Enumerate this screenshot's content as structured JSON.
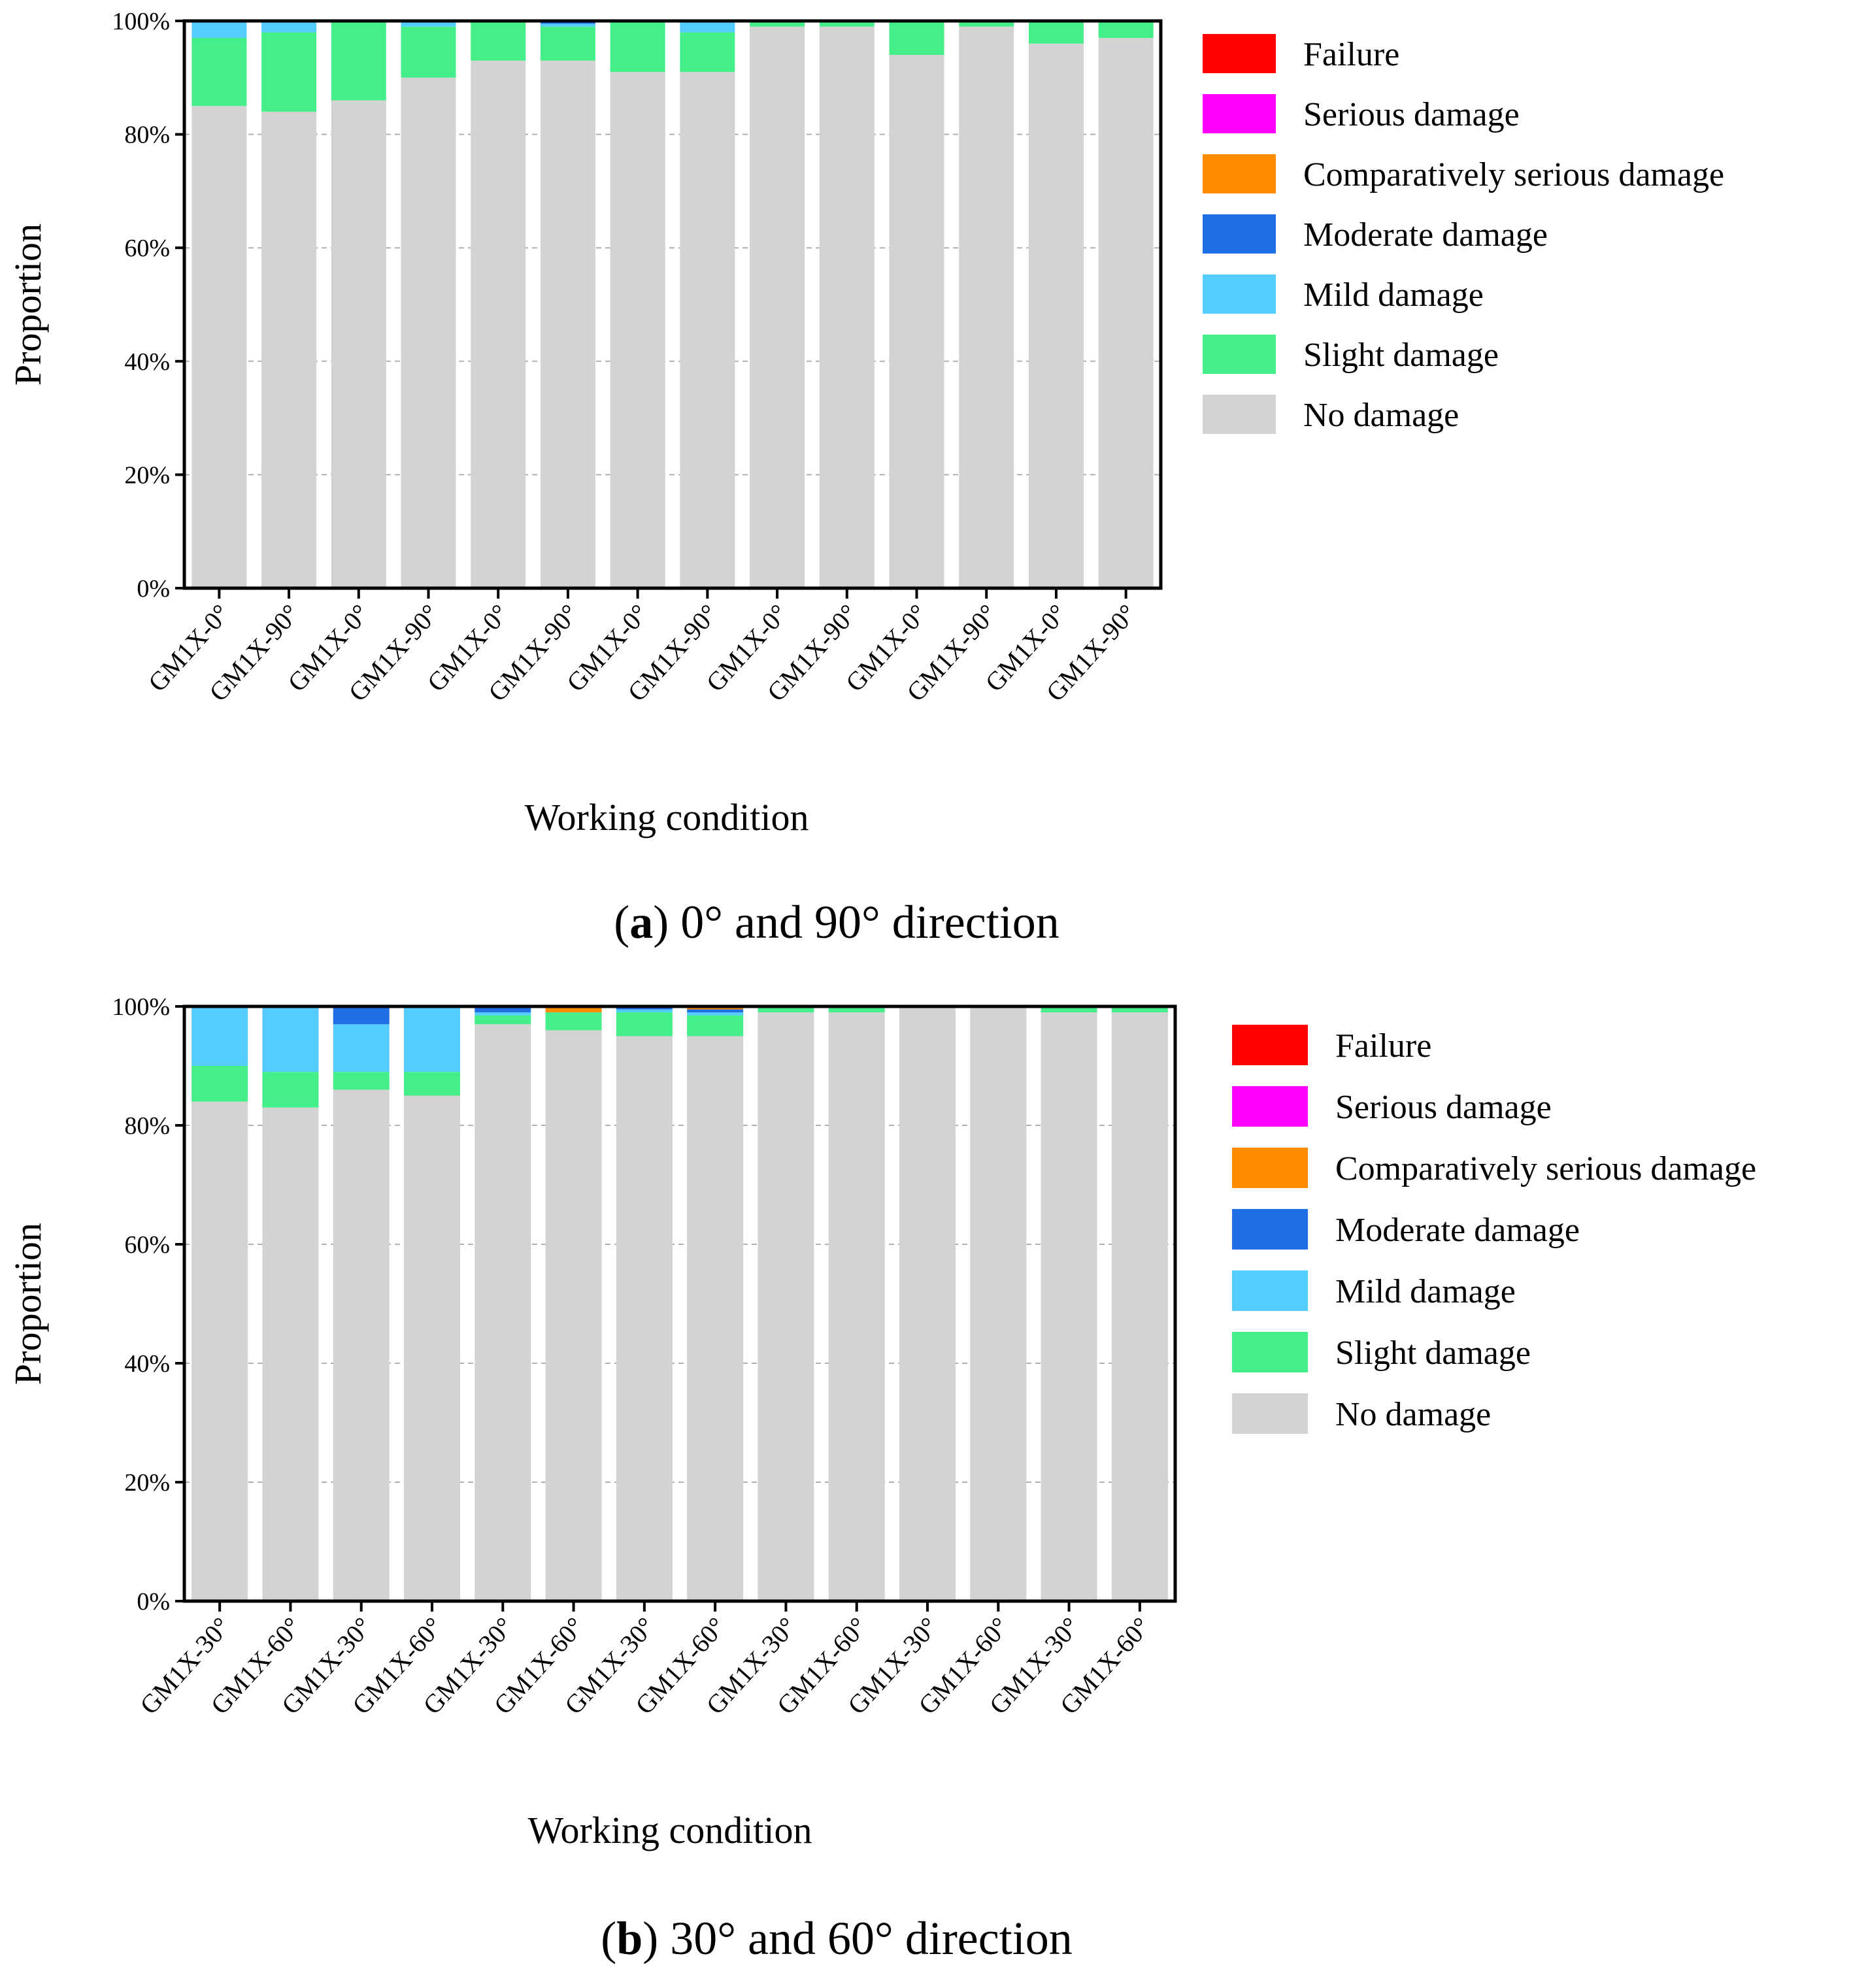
{
  "damage_levels": [
    "Failure",
    "Serious damage",
    "Comparatively serious damage",
    "Moderate damage",
    "Mild damage",
    "Slight damage",
    "No damage"
  ],
  "colors": {
    "Failure": "#ff0000",
    "Serious damage": "#ff00ff",
    "Comparatively serious damage": "#ff8c00",
    "Moderate damage": "#1f6fe5",
    "Mild damage": "#55ccff",
    "Slight damage": "#44ee88",
    "No damage": "#d3d3d3"
  },
  "chart_data": [
    {
      "type": "bar",
      "stacked": true,
      "caption_letter": "a",
      "caption_text": " 0° and 90° direction",
      "xlabel": "Working condition",
      "ylabel": "Proportion",
      "ylim": [
        0,
        100
      ],
      "y_ticks": [
        "0%",
        "20%",
        "40%",
        "60%",
        "80%",
        "100%"
      ],
      "grid": true,
      "legend_position": "right",
      "categories": [
        "GM1X-0°",
        "GM1X-90°",
        "GM1X-0°",
        "GM1X-90°",
        "GM1X-0°",
        "GM1X-90°",
        "GM1X-0°",
        "GM1X-90°",
        "GM1X-0°",
        "GM1X-90°",
        "GM1X-0°",
        "GM1X-90°",
        "GM1X-0°",
        "GM1X-90°"
      ],
      "series": [
        {
          "name": "No damage",
          "values": [
            85,
            84,
            86,
            90,
            93,
            93,
            91,
            91,
            99,
            99,
            94,
            99,
            96,
            97
          ]
        },
        {
          "name": "Slight damage",
          "values": [
            12,
            14,
            14,
            9,
            7,
            6,
            9,
            7,
            1,
            1,
            6,
            1,
            4,
            3
          ]
        },
        {
          "name": "Mild damage",
          "values": [
            3,
            2,
            0,
            1,
            0,
            0.5,
            0,
            2,
            0,
            0,
            0,
            0,
            0,
            0
          ]
        },
        {
          "name": "Moderate damage",
          "values": [
            0,
            0,
            0,
            0,
            0,
            0.5,
            0,
            0,
            0,
            0,
            0,
            0,
            0,
            0
          ]
        },
        {
          "name": "Comparatively serious damage",
          "values": [
            0,
            0,
            0,
            0,
            0,
            0,
            0,
            0,
            0,
            0,
            0,
            0,
            0,
            0
          ]
        },
        {
          "name": "Serious damage",
          "values": [
            0,
            0,
            0,
            0,
            0,
            0,
            0,
            0,
            0,
            0,
            0,
            0,
            0,
            0
          ]
        },
        {
          "name": "Failure",
          "values": [
            0,
            0,
            0,
            0,
            0,
            0,
            0,
            0,
            0,
            0,
            0,
            0,
            0,
            0
          ]
        }
      ]
    },
    {
      "type": "bar",
      "stacked": true,
      "caption_letter": "b",
      "caption_text": " 30° and 60° direction",
      "xlabel": "Working condition",
      "ylabel": "Proportion",
      "ylim": [
        0,
        100
      ],
      "y_ticks": [
        "0%",
        "20%",
        "40%",
        "60%",
        "80%",
        "100%"
      ],
      "grid": true,
      "legend_position": "right",
      "categories": [
        "GM1X-30°",
        "GM1X-60°",
        "GM1X-30°",
        "GM1X-60°",
        "GM1X-30°",
        "GM1X-60°",
        "GM1X-30°",
        "GM1X-60°",
        "GM1X-30°",
        "GM1X-60°",
        "GM1X-30°",
        "GM1X-60°",
        "GM1X-30°",
        "GM1X-60°"
      ],
      "series": [
        {
          "name": "No damage",
          "values": [
            84,
            83,
            86,
            85,
            97,
            96,
            95,
            95,
            99,
            99,
            100,
            100,
            99,
            99
          ]
        },
        {
          "name": "Slight damage",
          "values": [
            6,
            6,
            3,
            4,
            1.5,
            3,
            4,
            3.5,
            1,
            1,
            0,
            0,
            1,
            1
          ]
        },
        {
          "name": "Mild damage",
          "values": [
            10,
            11,
            8,
            11,
            0.5,
            0,
            0.5,
            0.5,
            0,
            0,
            0,
            0,
            0,
            0
          ]
        },
        {
          "name": "Moderate damage",
          "values": [
            0,
            0,
            3,
            0,
            1,
            0,
            0.5,
            0.5,
            0,
            0,
            0,
            0,
            0,
            0
          ]
        },
        {
          "name": "Comparatively serious damage",
          "values": [
            0,
            0,
            0,
            0,
            0,
            1,
            0,
            0.5,
            0,
            0,
            0,
            0,
            0,
            0
          ]
        },
        {
          "name": "Serious damage",
          "values": [
            0,
            0,
            0,
            0,
            0,
            0,
            0,
            0,
            0,
            0,
            0,
            0,
            0,
            0
          ]
        },
        {
          "name": "Failure",
          "values": [
            0,
            0,
            0,
            0,
            0,
            0,
            0,
            0,
            0,
            0,
            0,
            0,
            0,
            0
          ]
        }
      ]
    }
  ]
}
